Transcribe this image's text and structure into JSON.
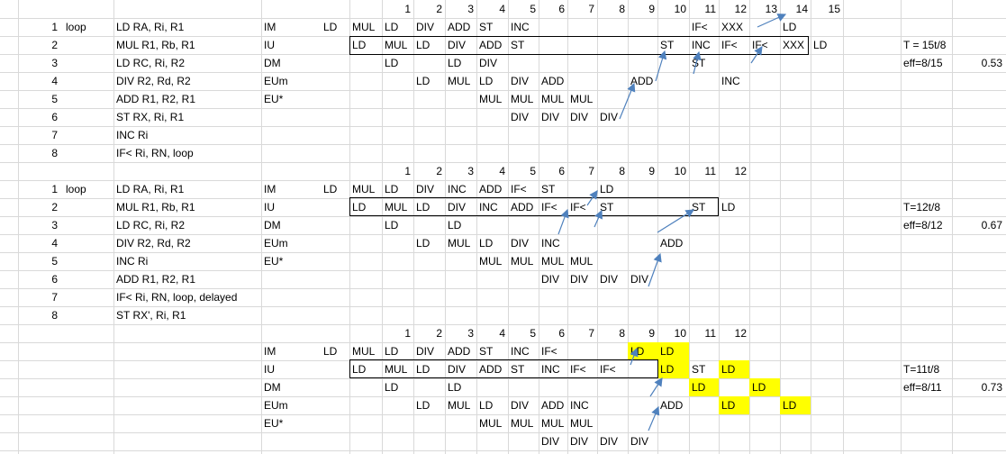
{
  "sheet": {
    "cells": [
      {
        "r": 0,
        "c": 7,
        "t": "1"
      },
      {
        "r": 0,
        "c": 8,
        "t": "2"
      },
      {
        "r": 0,
        "c": 9,
        "t": "3"
      },
      {
        "r": 0,
        "c": 10,
        "t": "4"
      },
      {
        "r": 0,
        "c": 11,
        "t": "5"
      },
      {
        "r": 0,
        "c": 12,
        "t": "6"
      },
      {
        "r": 0,
        "c": 13,
        "t": "7"
      },
      {
        "r": 0,
        "c": 14,
        "t": "8"
      },
      {
        "r": 0,
        "c": 15,
        "t": "9"
      },
      {
        "r": 0,
        "c": 16,
        "t": "10"
      },
      {
        "r": 0,
        "c": 17,
        "t": "11"
      },
      {
        "r": 0,
        "c": 18,
        "t": "12"
      },
      {
        "r": 0,
        "c": 19,
        "t": "13"
      },
      {
        "r": 0,
        "c": 20,
        "t": "14"
      },
      {
        "r": 0,
        "c": 21,
        "t": "15"
      },
      {
        "r": 1,
        "c": 0,
        "t": "1"
      },
      {
        "r": 1,
        "c": 1,
        "t": "loop"
      },
      {
        "r": 1,
        "c": 2,
        "t": "LD RA, Ri, R1"
      },
      {
        "r": 1,
        "c": 4,
        "t": "IM"
      },
      {
        "r": 1,
        "c": 5,
        "t": "LD"
      },
      {
        "r": 1,
        "c": 6,
        "t": "MUL"
      },
      {
        "r": 1,
        "c": 7,
        "t": "LD"
      },
      {
        "r": 1,
        "c": 8,
        "t": "DIV"
      },
      {
        "r": 1,
        "c": 9,
        "t": "ADD"
      },
      {
        "r": 1,
        "c": 10,
        "t": "ST"
      },
      {
        "r": 1,
        "c": 11,
        "t": "INC"
      },
      {
        "r": 1,
        "c": 17,
        "t": "IF<"
      },
      {
        "r": 1,
        "c": 18,
        "t": "XXX"
      },
      {
        "r": 1,
        "c": 20,
        "t": "LD"
      },
      {
        "r": 2,
        "c": 0,
        "t": "2"
      },
      {
        "r": 2,
        "c": 2,
        "t": "MUL R1, Rb, R1"
      },
      {
        "r": 2,
        "c": 4,
        "t": "IU"
      },
      {
        "r": 2,
        "c": 6,
        "t": "LD"
      },
      {
        "r": 2,
        "c": 7,
        "t": "MUL"
      },
      {
        "r": 2,
        "c": 8,
        "t": "LD"
      },
      {
        "r": 2,
        "c": 9,
        "t": "DIV"
      },
      {
        "r": 2,
        "c": 10,
        "t": "ADD"
      },
      {
        "r": 2,
        "c": 11,
        "t": "ST"
      },
      {
        "r": 2,
        "c": 16,
        "t": "ST"
      },
      {
        "r": 2,
        "c": 17,
        "t": "INC"
      },
      {
        "r": 2,
        "c": 18,
        "t": "IF<"
      },
      {
        "r": 2,
        "c": 19,
        "t": "IF<"
      },
      {
        "r": 2,
        "c": 20,
        "t": "XXX"
      },
      {
        "r": 2,
        "c": 21,
        "t": "LD"
      },
      {
        "r": 2,
        "c": 23,
        "t": "T = 15t/8"
      },
      {
        "r": 3,
        "c": 0,
        "t": "3"
      },
      {
        "r": 3,
        "c": 2,
        "t": "LD RC, Ri, R2"
      },
      {
        "r": 3,
        "c": 4,
        "t": "DM"
      },
      {
        "r": 3,
        "c": 7,
        "t": "LD"
      },
      {
        "r": 3,
        "c": 9,
        "t": "LD"
      },
      {
        "r": 3,
        "c": 10,
        "t": "DIV"
      },
      {
        "r": 3,
        "c": 17,
        "t": "ST"
      },
      {
        "r": 3,
        "c": 23,
        "t": "eff=8/15"
      },
      {
        "r": 3,
        "c": 24,
        "t": "0.53",
        "num": true
      },
      {
        "r": 4,
        "c": 0,
        "t": "4"
      },
      {
        "r": 4,
        "c": 2,
        "t": "DIV R2, Rd, R2"
      },
      {
        "r": 4,
        "c": 4,
        "t": "EUm"
      },
      {
        "r": 4,
        "c": 8,
        "t": "LD"
      },
      {
        "r": 4,
        "c": 9,
        "t": "MUL"
      },
      {
        "r": 4,
        "c": 10,
        "t": "LD"
      },
      {
        "r": 4,
        "c": 11,
        "t": "DIV"
      },
      {
        "r": 4,
        "c": 12,
        "t": "ADD"
      },
      {
        "r": 4,
        "c": 15,
        "t": "ADD"
      },
      {
        "r": 4,
        "c": 18,
        "t": "INC"
      },
      {
        "r": 5,
        "c": 0,
        "t": "5"
      },
      {
        "r": 5,
        "c": 2,
        "t": "ADD R1, R2, R1"
      },
      {
        "r": 5,
        "c": 4,
        "t": "EU*"
      },
      {
        "r": 5,
        "c": 10,
        "t": "MUL"
      },
      {
        "r": 5,
        "c": 11,
        "t": "MUL"
      },
      {
        "r": 5,
        "c": 12,
        "t": "MUL"
      },
      {
        "r": 5,
        "c": 13,
        "t": "MUL"
      },
      {
        "r": 6,
        "c": 0,
        "t": "6"
      },
      {
        "r": 6,
        "c": 2,
        "t": "ST RX, Ri, R1"
      },
      {
        "r": 6,
        "c": 11,
        "t": "DIV"
      },
      {
        "r": 6,
        "c": 12,
        "t": "DIV"
      },
      {
        "r": 6,
        "c": 13,
        "t": "DIV"
      },
      {
        "r": 6,
        "c": 14,
        "t": "DIV"
      },
      {
        "r": 7,
        "c": 0,
        "t": "7"
      },
      {
        "r": 7,
        "c": 2,
        "t": "INC Ri"
      },
      {
        "r": 8,
        "c": 0,
        "t": "8"
      },
      {
        "r": 8,
        "c": 2,
        "t": "IF< Ri, RN, loop"
      },
      {
        "r": 9,
        "c": 7,
        "t": "1"
      },
      {
        "r": 9,
        "c": 8,
        "t": "2"
      },
      {
        "r": 9,
        "c": 9,
        "t": "3"
      },
      {
        "r": 9,
        "c": 10,
        "t": "4"
      },
      {
        "r": 9,
        "c": 11,
        "t": "5"
      },
      {
        "r": 9,
        "c": 12,
        "t": "6"
      },
      {
        "r": 9,
        "c": 13,
        "t": "7"
      },
      {
        "r": 9,
        "c": 14,
        "t": "8"
      },
      {
        "r": 9,
        "c": 15,
        "t": "9"
      },
      {
        "r": 9,
        "c": 16,
        "t": "10"
      },
      {
        "r": 9,
        "c": 17,
        "t": "11"
      },
      {
        "r": 9,
        "c": 18,
        "t": "12"
      },
      {
        "r": 10,
        "c": 0,
        "t": "1"
      },
      {
        "r": 10,
        "c": 1,
        "t": "loop"
      },
      {
        "r": 10,
        "c": 2,
        "t": "LD RA, Ri, R1"
      },
      {
        "r": 10,
        "c": 4,
        "t": "IM"
      },
      {
        "r": 10,
        "c": 5,
        "t": "LD"
      },
      {
        "r": 10,
        "c": 6,
        "t": "MUL"
      },
      {
        "r": 10,
        "c": 7,
        "t": "LD"
      },
      {
        "r": 10,
        "c": 8,
        "t": "DIV"
      },
      {
        "r": 10,
        "c": 9,
        "t": "INC"
      },
      {
        "r": 10,
        "c": 10,
        "t": "ADD"
      },
      {
        "r": 10,
        "c": 11,
        "t": "IF<"
      },
      {
        "r": 10,
        "c": 12,
        "t": "ST"
      },
      {
        "r": 10,
        "c": 14,
        "t": "LD"
      },
      {
        "r": 11,
        "c": 0,
        "t": "2"
      },
      {
        "r": 11,
        "c": 2,
        "t": "MUL R1, Rb, R1"
      },
      {
        "r": 11,
        "c": 4,
        "t": "IU"
      },
      {
        "r": 11,
        "c": 6,
        "t": "LD"
      },
      {
        "r": 11,
        "c": 7,
        "t": "MUL"
      },
      {
        "r": 11,
        "c": 8,
        "t": "LD"
      },
      {
        "r": 11,
        "c": 9,
        "t": "DIV"
      },
      {
        "r": 11,
        "c": 10,
        "t": "INC"
      },
      {
        "r": 11,
        "c": 11,
        "t": "ADD"
      },
      {
        "r": 11,
        "c": 12,
        "t": "IF<"
      },
      {
        "r": 11,
        "c": 13,
        "t": "IF<"
      },
      {
        "r": 11,
        "c": 14,
        "t": "ST"
      },
      {
        "r": 11,
        "c": 17,
        "t": "ST"
      },
      {
        "r": 11,
        "c": 18,
        "t": "LD"
      },
      {
        "r": 11,
        "c": 23,
        "t": "T=12t/8"
      },
      {
        "r": 12,
        "c": 0,
        "t": "3"
      },
      {
        "r": 12,
        "c": 2,
        "t": "LD RC, Ri, R2"
      },
      {
        "r": 12,
        "c": 4,
        "t": "DM"
      },
      {
        "r": 12,
        "c": 7,
        "t": "LD"
      },
      {
        "r": 12,
        "c": 9,
        "t": "LD"
      },
      {
        "r": 12,
        "c": 23,
        "t": "eff=8/12"
      },
      {
        "r": 12,
        "c": 24,
        "t": "0.67",
        "num": true
      },
      {
        "r": 13,
        "c": 0,
        "t": "4"
      },
      {
        "r": 13,
        "c": 2,
        "t": "DIV R2, Rd, R2"
      },
      {
        "r": 13,
        "c": 4,
        "t": "EUm"
      },
      {
        "r": 13,
        "c": 8,
        "t": "LD"
      },
      {
        "r": 13,
        "c": 9,
        "t": "MUL"
      },
      {
        "r": 13,
        "c": 10,
        "t": "LD"
      },
      {
        "r": 13,
        "c": 11,
        "t": "DIV"
      },
      {
        "r": 13,
        "c": 12,
        "t": "INC"
      },
      {
        "r": 13,
        "c": 16,
        "t": "ADD"
      },
      {
        "r": 14,
        "c": 0,
        "t": "5"
      },
      {
        "r": 14,
        "c": 2,
        "t": "INC Ri"
      },
      {
        "r": 14,
        "c": 4,
        "t": "EU*"
      },
      {
        "r": 14,
        "c": 10,
        "t": "MUL"
      },
      {
        "r": 14,
        "c": 11,
        "t": "MUL"
      },
      {
        "r": 14,
        "c": 12,
        "t": "MUL"
      },
      {
        "r": 14,
        "c": 13,
        "t": "MUL"
      },
      {
        "r": 15,
        "c": 0,
        "t": "6"
      },
      {
        "r": 15,
        "c": 2,
        "t": "ADD R1, R2, R1"
      },
      {
        "r": 15,
        "c": 12,
        "t": "DIV"
      },
      {
        "r": 15,
        "c": 13,
        "t": "DIV"
      },
      {
        "r": 15,
        "c": 14,
        "t": "DIV"
      },
      {
        "r": 15,
        "c": 15,
        "t": "DIV"
      },
      {
        "r": 16,
        "c": 0,
        "t": "7"
      },
      {
        "r": 16,
        "c": 2,
        "t": "IF< Ri, RN, loop, delayed"
      },
      {
        "r": 17,
        "c": 0,
        "t": "8"
      },
      {
        "r": 17,
        "c": 2,
        "t": "ST RX', Ri, R1"
      },
      {
        "r": 18,
        "c": 7,
        "t": "1"
      },
      {
        "r": 18,
        "c": 8,
        "t": "2"
      },
      {
        "r": 18,
        "c": 9,
        "t": "3"
      },
      {
        "r": 18,
        "c": 10,
        "t": "4"
      },
      {
        "r": 18,
        "c": 11,
        "t": "5"
      },
      {
        "r": 18,
        "c": 12,
        "t": "6"
      },
      {
        "r": 18,
        "c": 13,
        "t": "7"
      },
      {
        "r": 18,
        "c": 14,
        "t": "8"
      },
      {
        "r": 18,
        "c": 15,
        "t": "9"
      },
      {
        "r": 18,
        "c": 16,
        "t": "10"
      },
      {
        "r": 18,
        "c": 17,
        "t": "11"
      },
      {
        "r": 18,
        "c": 18,
        "t": "12"
      },
      {
        "r": 19,
        "c": 4,
        "t": "IM"
      },
      {
        "r": 19,
        "c": 5,
        "t": "LD"
      },
      {
        "r": 19,
        "c": 6,
        "t": "MUL"
      },
      {
        "r": 19,
        "c": 7,
        "t": "LD"
      },
      {
        "r": 19,
        "c": 8,
        "t": "DIV"
      },
      {
        "r": 19,
        "c": 9,
        "t": "ADD"
      },
      {
        "r": 19,
        "c": 10,
        "t": "ST"
      },
      {
        "r": 19,
        "c": 11,
        "t": "INC"
      },
      {
        "r": 19,
        "c": 12,
        "t": "IF<"
      },
      {
        "r": 19,
        "c": 15,
        "t": "LD",
        "hl": true
      },
      {
        "r": 19,
        "c": 16,
        "t": "LD",
        "hl": true
      },
      {
        "r": 20,
        "c": 4,
        "t": "IU"
      },
      {
        "r": 20,
        "c": 6,
        "t": "LD"
      },
      {
        "r": 20,
        "c": 7,
        "t": "MUL"
      },
      {
        "r": 20,
        "c": 8,
        "t": "LD"
      },
      {
        "r": 20,
        "c": 9,
        "t": "DIV"
      },
      {
        "r": 20,
        "c": 10,
        "t": "ADD"
      },
      {
        "r": 20,
        "c": 11,
        "t": "ST"
      },
      {
        "r": 20,
        "c": 12,
        "t": "INC"
      },
      {
        "r": 20,
        "c": 13,
        "t": "IF<"
      },
      {
        "r": 20,
        "c": 14,
        "t": "IF<"
      },
      {
        "r": 20,
        "c": 16,
        "t": "LD",
        "hl": true
      },
      {
        "r": 20,
        "c": 17,
        "t": "ST"
      },
      {
        "r": 20,
        "c": 18,
        "t": "LD",
        "hl": true
      },
      {
        "r": 20,
        "c": 23,
        "t": "T=11t/8"
      },
      {
        "r": 21,
        "c": 4,
        "t": "DM"
      },
      {
        "r": 21,
        "c": 7,
        "t": "LD"
      },
      {
        "r": 21,
        "c": 9,
        "t": "LD"
      },
      {
        "r": 21,
        "c": 17,
        "t": "LD",
        "hl": true
      },
      {
        "r": 21,
        "c": 19,
        "t": "LD",
        "hl": true
      },
      {
        "r": 21,
        "c": 23,
        "t": "eff=8/11"
      },
      {
        "r": 21,
        "c": 24,
        "t": "0.73",
        "num": true
      },
      {
        "r": 22,
        "c": 4,
        "t": "EUm"
      },
      {
        "r": 22,
        "c": 8,
        "t": "LD"
      },
      {
        "r": 22,
        "c": 9,
        "t": "MUL"
      },
      {
        "r": 22,
        "c": 10,
        "t": "LD"
      },
      {
        "r": 22,
        "c": 11,
        "t": "DIV"
      },
      {
        "r": 22,
        "c": 12,
        "t": "ADD"
      },
      {
        "r": 22,
        "c": 13,
        "t": "INC"
      },
      {
        "r": 22,
        "c": 16,
        "t": "ADD"
      },
      {
        "r": 22,
        "c": 18,
        "t": "LD",
        "hl": true
      },
      {
        "r": 22,
        "c": 20,
        "t": "LD",
        "hl": true
      },
      {
        "r": 23,
        "c": 4,
        "t": "EU*"
      },
      {
        "r": 23,
        "c": 10,
        "t": "MUL"
      },
      {
        "r": 23,
        "c": 11,
        "t": "MUL"
      },
      {
        "r": 23,
        "c": 12,
        "t": "MUL"
      },
      {
        "r": 23,
        "c": 13,
        "t": "MUL"
      },
      {
        "r": 24,
        "c": 12,
        "t": "DIV"
      },
      {
        "r": 24,
        "c": 13,
        "t": "DIV"
      },
      {
        "r": 24,
        "c": 14,
        "t": "DIV"
      },
      {
        "r": 24,
        "c": 15,
        "t": "DIV"
      }
    ],
    "colors": {
      "gridline": "#d9d9d9",
      "highlight": "#ffff00",
      "arrow": "#4f81bd",
      "box": "#000000"
    }
  }
}
